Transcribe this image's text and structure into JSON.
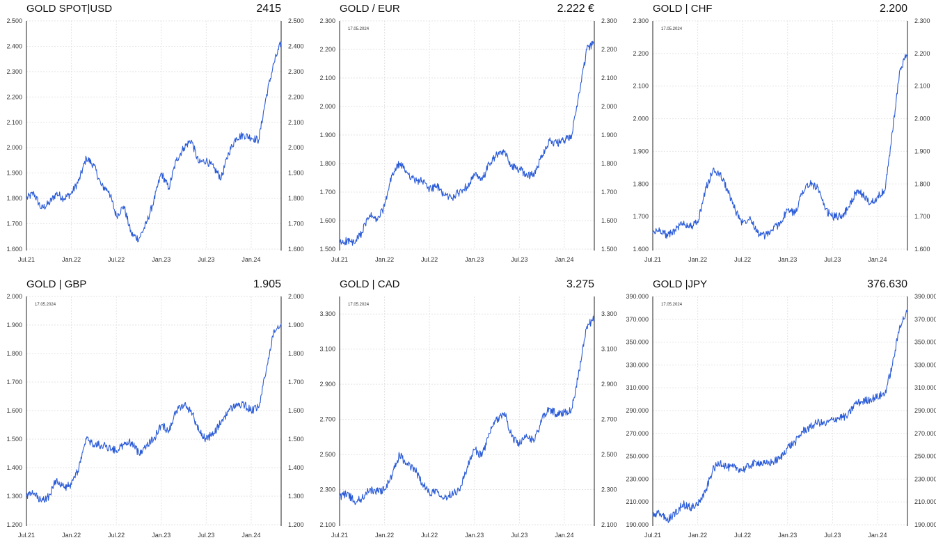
{
  "chart_data": [
    {
      "type": "line",
      "title": "GOLD SPOT|USD",
      "last_value": "2415",
      "date_label": "",
      "x_ticks": [
        "Jul.21",
        "Jan.22",
        "Jul.22",
        "Jan.23",
        "Jul.23",
        "Jan.24"
      ],
      "y_ticks": [
        "1.600",
        "1.700",
        "1.800",
        "1.900",
        "2.000",
        "2.100",
        "2.200",
        "2.300",
        "2.400",
        "2.500"
      ],
      "ylim": [
        1600,
        2500
      ],
      "line_color": "#2a5bd7",
      "series": [
        {
          "x": [
            "2021-07",
            "2021-08",
            "2021-09",
            "2021-10",
            "2021-11",
            "2021-12",
            "2022-01",
            "2022-02",
            "2022-03",
            "2022-04",
            "2022-05",
            "2022-06",
            "2022-07",
            "2022-08",
            "2022-09",
            "2022-10",
            "2022-11",
            "2022-12",
            "2023-01",
            "2023-02",
            "2023-03",
            "2023-04",
            "2023-05",
            "2023-06",
            "2023-07",
            "2023-08",
            "2023-09",
            "2023-10",
            "2023-11",
            "2023-12",
            "2024-01",
            "2024-02",
            "2024-03",
            "2024-04",
            "2024-05"
          ],
          "values": [
            1800,
            1820,
            1760,
            1780,
            1820,
            1800,
            1820,
            1870,
            1960,
            1930,
            1850,
            1830,
            1730,
            1770,
            1660,
            1640,
            1700,
            1790,
            1900,
            1840,
            1950,
            2000,
            2030,
            1940,
            1950,
            1920,
            1880,
            1980,
            2040,
            2050,
            2040,
            2030,
            2200,
            2330,
            2415
          ]
        }
      ]
    },
    {
      "type": "line",
      "title": "GOLD / EUR",
      "last_value": "2.222 €",
      "date_label": "17.05.2024",
      "x_ticks": [
        "Jul.21",
        "Jan.22",
        "Jul.22",
        "Jan.23",
        "Jul.23",
        "Jan.24"
      ],
      "y_ticks": [
        "1.500",
        "1.600",
        "1.700",
        "1.800",
        "1.900",
        "2.000",
        "2.100",
        "2.200",
        "2.300"
      ],
      "ylim": [
        1500,
        2300
      ],
      "line_color": "#2a5bd7",
      "series": [
        {
          "x": [
            "2021-07",
            "2021-08",
            "2021-09",
            "2021-10",
            "2021-11",
            "2021-12",
            "2022-01",
            "2022-02",
            "2022-03",
            "2022-04",
            "2022-05",
            "2022-06",
            "2022-07",
            "2022-08",
            "2022-09",
            "2022-10",
            "2022-11",
            "2022-12",
            "2023-01",
            "2023-02",
            "2023-03",
            "2023-04",
            "2023-05",
            "2023-06",
            "2023-07",
            "2023-08",
            "2023-09",
            "2023-10",
            "2023-11",
            "2023-12",
            "2024-01",
            "2024-02",
            "2024-03",
            "2024-04",
            "2024-05"
          ],
          "values": [
            1520,
            1530,
            1520,
            1560,
            1620,
            1600,
            1650,
            1760,
            1800,
            1770,
            1740,
            1740,
            1710,
            1720,
            1690,
            1680,
            1700,
            1720,
            1760,
            1740,
            1800,
            1830,
            1840,
            1790,
            1780,
            1760,
            1760,
            1830,
            1880,
            1870,
            1880,
            1900,
            2050,
            2200,
            2222
          ]
        }
      ]
    },
    {
      "type": "line",
      "title": "GOLD | CHF",
      "last_value": "2.200",
      "date_label": "17.05.2024",
      "x_ticks": [
        "Jul.21",
        "Jan.22",
        "Jul.22",
        "Jan.23",
        "Jul.23",
        "Jan.24"
      ],
      "y_ticks": [
        "1.600",
        "1.700",
        "1.800",
        "1.900",
        "2.000",
        "2.100",
        "2.200",
        "2.300"
      ],
      "ylim": [
        1600,
        2300
      ],
      "line_color": "#2a5bd7",
      "series": [
        {
          "x": [
            "2021-07",
            "2021-08",
            "2021-09",
            "2021-10",
            "2021-11",
            "2021-12",
            "2022-01",
            "2022-02",
            "2022-03",
            "2022-04",
            "2022-05",
            "2022-06",
            "2022-07",
            "2022-08",
            "2022-09",
            "2022-10",
            "2022-11",
            "2022-12",
            "2023-01",
            "2023-02",
            "2023-03",
            "2023-04",
            "2023-05",
            "2023-06",
            "2023-07",
            "2023-08",
            "2023-09",
            "2023-10",
            "2023-11",
            "2023-12",
            "2024-01",
            "2024-02",
            "2024-03",
            "2024-04",
            "2024-05"
          ],
          "values": [
            1650,
            1660,
            1640,
            1660,
            1680,
            1670,
            1680,
            1780,
            1840,
            1830,
            1780,
            1720,
            1680,
            1700,
            1650,
            1640,
            1660,
            1680,
            1720,
            1710,
            1780,
            1800,
            1790,
            1720,
            1700,
            1700,
            1720,
            1770,
            1770,
            1740,
            1760,
            1780,
            1960,
            2150,
            2200
          ]
        }
      ]
    },
    {
      "type": "line",
      "title": "GOLD | GBP",
      "last_value": "1.905",
      "date_label": "17.05.2024",
      "x_ticks": [
        "Jul.21",
        "Jan.22",
        "Jul.22",
        "Jan.23",
        "Jul.23",
        "Jan.24"
      ],
      "y_ticks": [
        "1.200",
        "1.300",
        "1.400",
        "1.500",
        "1.600",
        "1.700",
        "1.800",
        "1.900",
        "2.000"
      ],
      "ylim": [
        1200,
        2000
      ],
      "line_color": "#2a5bd7",
      "series": [
        {
          "x": [
            "2021-07",
            "2021-08",
            "2021-09",
            "2021-10",
            "2021-11",
            "2021-12",
            "2022-01",
            "2022-02",
            "2022-03",
            "2022-04",
            "2022-05",
            "2022-06",
            "2022-07",
            "2022-08",
            "2022-09",
            "2022-10",
            "2022-11",
            "2022-12",
            "2023-01",
            "2023-02",
            "2023-03",
            "2023-04",
            "2023-05",
            "2023-06",
            "2023-07",
            "2023-08",
            "2023-09",
            "2023-10",
            "2023-11",
            "2023-12",
            "2024-01",
            "2024-02",
            "2024-03",
            "2024-04",
            "2024-05"
          ],
          "values": [
            1300,
            1310,
            1280,
            1300,
            1360,
            1330,
            1340,
            1400,
            1500,
            1480,
            1480,
            1470,
            1460,
            1480,
            1490,
            1450,
            1480,
            1500,
            1550,
            1530,
            1600,
            1620,
            1600,
            1530,
            1500,
            1520,
            1560,
            1600,
            1620,
            1620,
            1600,
            1610,
            1740,
            1880,
            1905
          ]
        }
      ]
    },
    {
      "type": "line",
      "title": "GOLD | CAD",
      "last_value": "3.275",
      "date_label": "17.05.2024",
      "x_ticks": [
        "Jul.21",
        "Jan.22",
        "Jul.22",
        "Jan.23",
        "Jul.23",
        "Jan.24"
      ],
      "y_ticks": [
        "2.100",
        "2.300",
        "2.500",
        "2.700",
        "2.900",
        "3.100",
        "3.300"
      ],
      "ylim": [
        2100,
        3400
      ],
      "line_color": "#2a5bd7",
      "series": [
        {
          "x": [
            "2021-07",
            "2021-08",
            "2021-09",
            "2021-10",
            "2021-11",
            "2021-12",
            "2022-01",
            "2022-02",
            "2022-03",
            "2022-04",
            "2022-05",
            "2022-06",
            "2022-07",
            "2022-08",
            "2022-09",
            "2022-10",
            "2022-11",
            "2022-12",
            "2023-01",
            "2023-02",
            "2023-03",
            "2023-04",
            "2023-05",
            "2023-06",
            "2023-07",
            "2023-08",
            "2023-09",
            "2023-10",
            "2023-11",
            "2023-12",
            "2024-01",
            "2024-02",
            "2024-03",
            "2024-04",
            "2024-05"
          ],
          "values": [
            2260,
            2280,
            2230,
            2250,
            2300,
            2290,
            2300,
            2380,
            2500,
            2440,
            2420,
            2340,
            2280,
            2300,
            2250,
            2280,
            2300,
            2420,
            2530,
            2490,
            2620,
            2700,
            2740,
            2600,
            2560,
            2600,
            2580,
            2700,
            2760,
            2730,
            2740,
            2760,
            2980,
            3230,
            3275
          ]
        }
      ]
    },
    {
      "type": "line",
      "title": "GOLD |JPY",
      "last_value": "376.630",
      "date_label": "17.05.2024",
      "x_ticks": [
        "Jul.21",
        "Jan.22",
        "Jul.22",
        "Jan.23",
        "Jul.23",
        "Jan.24"
      ],
      "y_ticks": [
        "190.000",
        "210.000",
        "230.000",
        "250.000",
        "270.000",
        "290.000",
        "310.000",
        "330.000",
        "350.000",
        "370.000",
        "390.000"
      ],
      "ylim": [
        190000,
        390000
      ],
      "line_color": "#2a5bd7",
      "series": [
        {
          "x": [
            "2021-07",
            "2021-08",
            "2021-09",
            "2021-10",
            "2021-11",
            "2021-12",
            "2022-01",
            "2022-02",
            "2022-03",
            "2022-04",
            "2022-05",
            "2022-06",
            "2022-07",
            "2022-08",
            "2022-09",
            "2022-10",
            "2022-11",
            "2022-12",
            "2023-01",
            "2023-02",
            "2023-03",
            "2023-04",
            "2023-05",
            "2023-06",
            "2023-07",
            "2023-08",
            "2023-09",
            "2023-10",
            "2023-11",
            "2023-12",
            "2024-01",
            "2024-02",
            "2024-03",
            "2024-04",
            "2024-05"
          ],
          "values": [
            198000,
            200000,
            194000,
            200000,
            208000,
            205000,
            208000,
            218000,
            238000,
            245000,
            240000,
            240000,
            238000,
            242000,
            245000,
            243000,
            245000,
            248000,
            258000,
            262000,
            272000,
            275000,
            280000,
            278000,
            282000,
            284000,
            285000,
            296000,
            298000,
            300000,
            302000,
            305000,
            330000,
            365000,
            376630
          ]
        }
      ]
    }
  ]
}
